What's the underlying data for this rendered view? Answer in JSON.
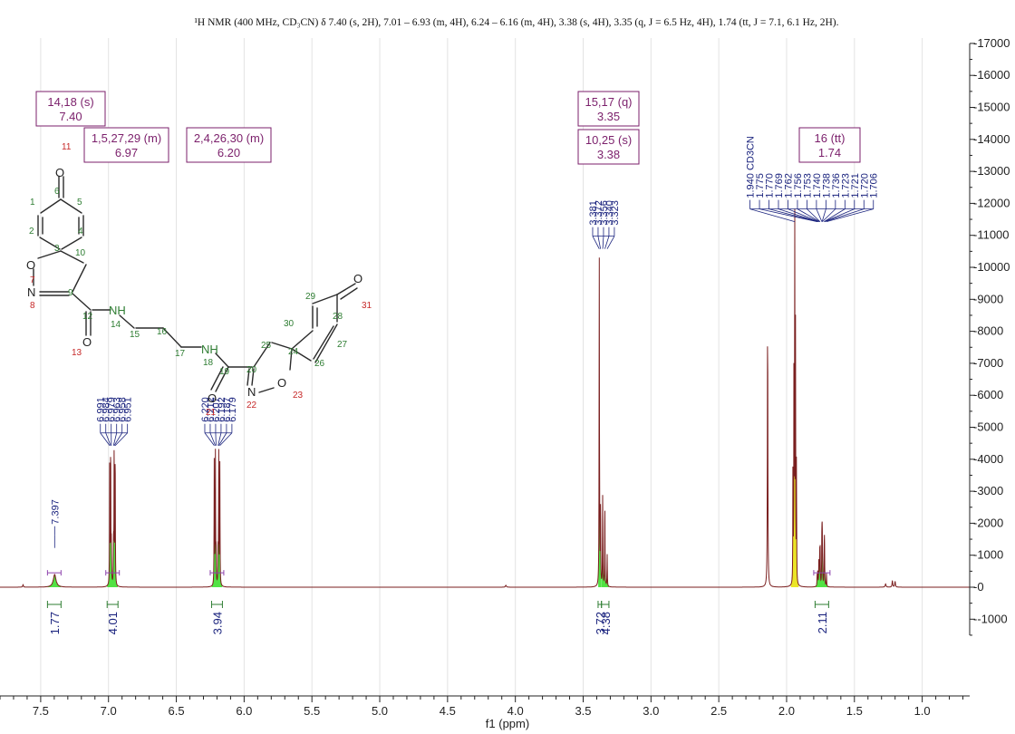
{
  "chart_data": {
    "type": "line",
    "title": "¹H NMR (400 MHz, CD₃CN) δ 7.40 (s, 2H), 7.01 – 6.93 (m, 4H), 6.24 – 6.16 (m, 4H), 3.38 (s, 4H), 3.35 (q, J = 6.5 Hz, 4H), 1.74 (tt, J = 7.1, 6.1 Hz, 2H).",
    "xlabel": "f1 (ppm)",
    "ylabel": "",
    "xlim": [
      7.8,
      0.65
    ],
    "ylim": [
      -1500,
      17000
    ],
    "x_ticks": [
      "7.5",
      "7.0",
      "6.5",
      "6.0",
      "5.5",
      "5.0",
      "4.5",
      "4.0",
      "3.5",
      "3.0",
      "2.5",
      "2.0",
      "1.5",
      "1.0"
    ],
    "y_ticks": [
      "-1000",
      "0",
      "1000",
      "2000",
      "3000",
      "4000",
      "5000",
      "6000",
      "7000",
      "8000",
      "9000",
      "10000",
      "11000",
      "12000",
      "13000",
      "14000",
      "15000",
      "16000",
      "17000"
    ],
    "peaks": [
      {
        "ppm": 7.397,
        "height": 400,
        "width": 0.012
      },
      {
        "ppm": 6.991,
        "height": 4100,
        "width": 0.0015
      },
      {
        "ppm": 6.984,
        "height": 4400,
        "width": 0.0015
      },
      {
        "ppm": 6.979,
        "height": 1200,
        "width": 0.0015
      },
      {
        "ppm": 6.963,
        "height": 1300,
        "width": 0.0015
      },
      {
        "ppm": 6.958,
        "height": 4400,
        "width": 0.0015
      },
      {
        "ppm": 6.951,
        "height": 4200,
        "width": 0.0015
      },
      {
        "ppm": 6.22,
        "height": 3900,
        "width": 0.0015
      },
      {
        "ppm": 6.212,
        "height": 4100,
        "width": 0.0015
      },
      {
        "ppm": 6.207,
        "height": 1100,
        "width": 0.0015
      },
      {
        "ppm": 6.192,
        "height": 1100,
        "width": 0.0015
      },
      {
        "ppm": 6.187,
        "height": 4100,
        "width": 0.0015
      },
      {
        "ppm": 6.179,
        "height": 3800,
        "width": 0.0015
      },
      {
        "ppm": 3.381,
        "height": 10500,
        "width": 0.0015
      },
      {
        "ppm": 3.372,
        "height": 2500,
        "width": 0.0015
      },
      {
        "ppm": 3.356,
        "height": 2800,
        "width": 0.0015
      },
      {
        "ppm": 3.34,
        "height": 2600,
        "width": 0.0015
      },
      {
        "ppm": 3.323,
        "height": 1000,
        "width": 0.0015
      },
      {
        "ppm": 2.14,
        "height": 8000,
        "width": 0.002
      },
      {
        "ppm": 1.953,
        "height": 4000,
        "width": 0.0012
      },
      {
        "ppm": 1.946,
        "height": 8000,
        "width": 0.0012
      },
      {
        "ppm": 1.94,
        "height": 11500,
        "width": 0.0014
      },
      {
        "ppm": 1.934,
        "height": 8000,
        "width": 0.0012
      },
      {
        "ppm": 1.927,
        "height": 4000,
        "width": 0.0012
      },
      {
        "ppm": 1.775,
        "height": 350,
        "width": 0.0015
      },
      {
        "ppm": 1.77,
        "height": 500,
        "width": 0.0015
      },
      {
        "ppm": 1.762,
        "height": 800,
        "width": 0.0015
      },
      {
        "ppm": 1.756,
        "height": 1000,
        "width": 0.0015
      },
      {
        "ppm": 1.753,
        "height": 1100,
        "width": 0.0015
      },
      {
        "ppm": 1.74,
        "height": 1300,
        "width": 0.0015
      },
      {
        "ppm": 1.738,
        "height": 1200,
        "width": 0.0015
      },
      {
        "ppm": 1.736,
        "height": 1100,
        "width": 0.0015
      },
      {
        "ppm": 1.723,
        "height": 900,
        "width": 0.0015
      },
      {
        "ppm": 1.721,
        "height": 800,
        "width": 0.0015
      },
      {
        "ppm": 1.72,
        "height": 700,
        "width": 0.0015
      },
      {
        "ppm": 1.706,
        "height": 400,
        "width": 0.0015
      },
      {
        "ppm": 4.07,
        "height": 60,
        "width": 0.004
      },
      {
        "ppm": 1.27,
        "height": 100,
        "width": 0.004
      },
      {
        "ppm": 1.22,
        "height": 200,
        "width": 0.003
      },
      {
        "ppm": 1.2,
        "height": 180,
        "width": 0.003
      },
      {
        "ppm": 7.63,
        "height": 80,
        "width": 0.003
      }
    ],
    "peak_label_groups": [
      {
        "labels": [
          "7.397"
        ],
        "ppm_at": [
          7.397
        ],
        "label_x_ppm": [
          7.397
        ],
        "y_top": 1850
      },
      {
        "labels": [
          "6.991",
          "6.984",
          "6.979",
          "6.963",
          "6.958",
          "6.951"
        ],
        "ppm_at": [
          6.991,
          6.984,
          6.979,
          6.963,
          6.958,
          6.951
        ],
        "label_x_ppm": [
          7.06,
          7.02,
          6.98,
          6.94,
          6.9,
          6.86
        ],
        "y_top": 5050
      },
      {
        "labels": [
          "6.220",
          "6.212",
          "6.207",
          "6.192",
          "6.187",
          "6.179"
        ],
        "ppm_at": [
          6.22,
          6.212,
          6.207,
          6.192,
          6.187,
          6.179
        ],
        "label_x_ppm": [
          6.29,
          6.25,
          6.21,
          6.17,
          6.13,
          6.09
        ],
        "y_top": 5050
      },
      {
        "labels": [
          "3.381",
          "3.372",
          "3.356",
          "3.340",
          "3.323"
        ],
        "ppm_at": [
          3.381,
          3.372,
          3.356,
          3.34,
          3.323
        ],
        "label_x_ppm": [
          3.43,
          3.39,
          3.35,
          3.31,
          3.27
        ],
        "y_top": 11200
      },
      {
        "labels": [
          "1.940 CD3CN",
          "1.775",
          "1.770",
          "1.769",
          "1.762",
          "1.756",
          "1.753",
          "1.740",
          "1.738",
          "1.736",
          "1.723",
          "1.721",
          "1.720",
          "1.706"
        ],
        "ppm_at": [
          1.94,
          1.775,
          1.77,
          1.769,
          1.762,
          1.756,
          1.753,
          1.74,
          1.738,
          1.736,
          1.723,
          1.721,
          1.72,
          1.706
        ],
        "label_x_ppm": [
          2.27,
          2.2,
          2.13,
          2.06,
          1.99,
          1.92,
          1.85,
          1.78,
          1.71,
          1.64,
          1.57,
          1.5,
          1.43,
          1.36
        ],
        "y_top": 12050
      }
    ],
    "integrals": [
      {
        "from": 7.45,
        "to": 7.35,
        "value": "1.77"
      },
      {
        "from": 7.01,
        "to": 6.93,
        "value": "4.01"
      },
      {
        "from": 6.24,
        "to": 6.16,
        "value": "3.94"
      },
      {
        "from": 3.39,
        "to": 3.365,
        "value": "3.72"
      },
      {
        "from": 3.365,
        "to": 3.31,
        "value": "4.38"
      },
      {
        "from": 1.79,
        "to": 1.69,
        "value": "2.11"
      }
    ],
    "multiplet_boxes": [
      {
        "line1": "14,18 (s)",
        "line2": "7.40"
      },
      {
        "line1": "1,5,27,29 (m)",
        "line2": "6.97"
      },
      {
        "line1": "2,4,26,30 (m)",
        "line2": "6.20"
      },
      {
        "line1": "15,17 (q)",
        "line2": "3.35"
      },
      {
        "line1": "10,25 (s)",
        "line2": "3.38"
      },
      {
        "line1": "16 (tt)",
        "line2": "1.74"
      }
    ],
    "structure": {
      "atoms": [
        "O",
        "O",
        "N",
        "NH",
        "O",
        "NH",
        "O",
        "N",
        "O",
        "O"
      ],
      "numbers": [
        "11",
        "6",
        "1",
        "5",
        "2",
        "4",
        "3",
        "10",
        "7",
        "8",
        "9",
        "12",
        "13",
        "14",
        "15",
        "16",
        "17",
        "18",
        "19",
        "20",
        "21",
        "22",
        "23",
        "24",
        "25",
        "26",
        "27",
        "28",
        "29",
        "30",
        "31"
      ]
    },
    "grid": "vertical",
    "colors": {
      "spectrum": "#7a1f1f",
      "fill_green": "#33dd22",
      "fill_yellow": "#e8e000",
      "labels": "#1a237e",
      "boxes": "#7b1f6b",
      "atom_green": "#1e8c1e",
      "atom_red": "#c62828"
    }
  }
}
